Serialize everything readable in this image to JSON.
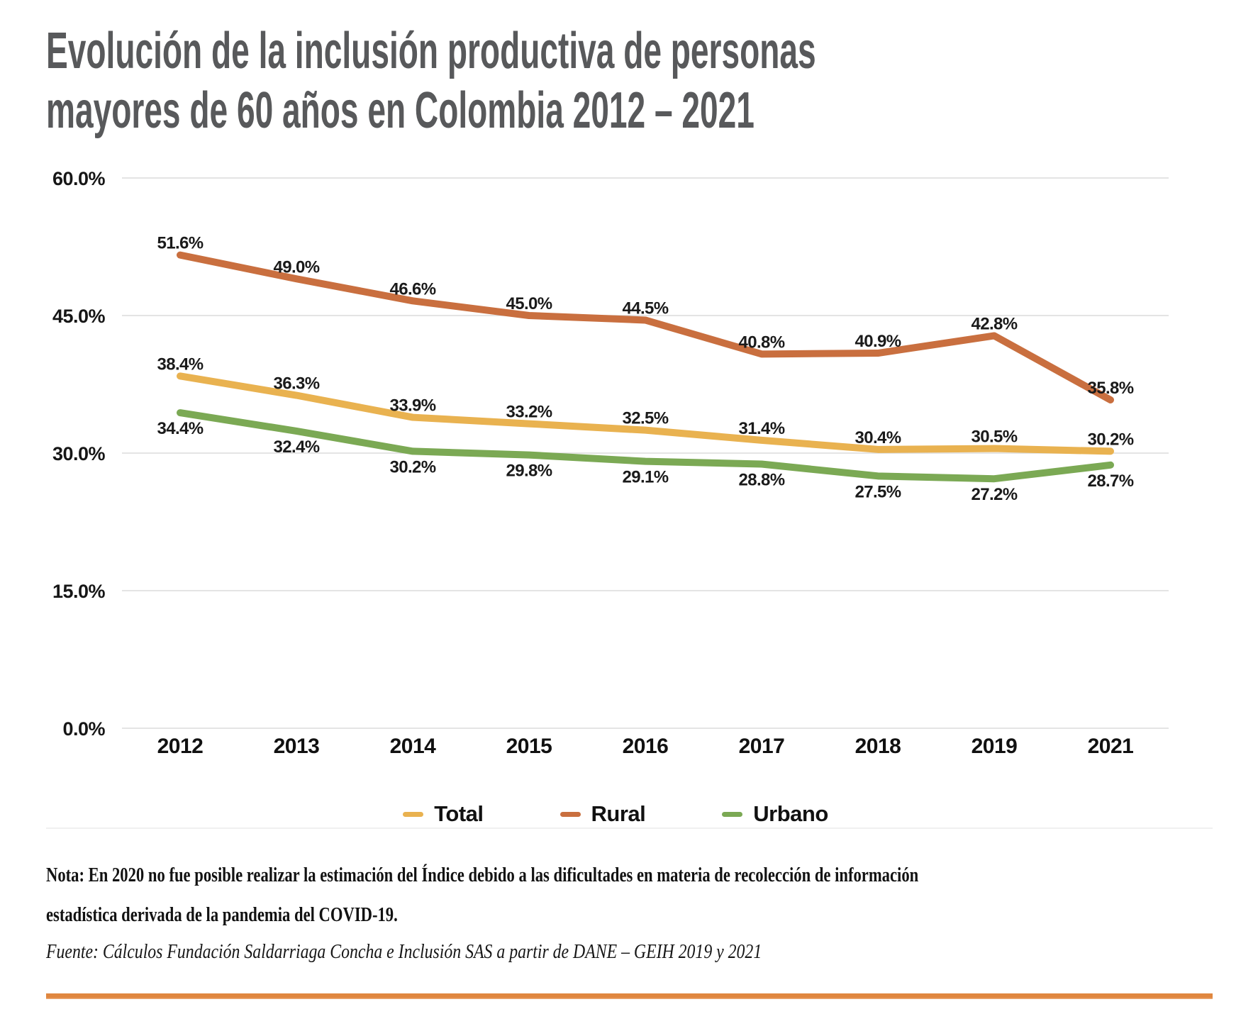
{
  "page": {
    "title_line1": "Evolución de la inclusión productiva de personas",
    "title_line2": "mayores de 60 años en Colombia 2012 – 2021",
    "nota_line1": "Nota: En 2020 no fue posible realizar la estimación del Índice debido a las dificultades en materia de recolección de información",
    "nota_line2": "estadística derivada de la pandemia del COVID-19.",
    "fuente": "Fuente: Cálculos Fundación Saldarriaga Concha e Inclusión SAS a partir de DANE – GEIH 2019 y 2021",
    "accent_rule_color": "#E0873F"
  },
  "chart_data": {
    "type": "line",
    "title": "Evolución de la inclusión productiva de personas mayores de 60 años en Colombia 2012 – 2021",
    "categories": [
      "2012",
      "2013",
      "2014",
      "2015",
      "2016",
      "2017",
      "2018",
      "2019",
      "2021"
    ],
    "series": [
      {
        "name": "Total",
        "color": "#E9B250",
        "label_position": "above",
        "values": [
          38.4,
          36.3,
          33.9,
          33.2,
          32.5,
          31.4,
          30.4,
          30.5,
          30.2
        ]
      },
      {
        "name": "Rural",
        "color": "#C96F3F",
        "label_position": "above",
        "values": [
          51.6,
          49.0,
          46.6,
          45.0,
          44.5,
          40.8,
          40.9,
          42.8,
          35.8
        ]
      },
      {
        "name": "Urbano",
        "color": "#7BA954",
        "label_position": "below",
        "values": [
          34.4,
          32.4,
          30.2,
          29.8,
          29.1,
          28.8,
          27.5,
          27.2,
          28.7
        ]
      }
    ],
    "xlabel": "",
    "ylabel": "",
    "ylim": [
      0,
      60
    ],
    "yticks": [
      {
        "value": 0,
        "label": "0.0%"
      },
      {
        "value": 15,
        "label": "15.0%"
      },
      {
        "value": 30,
        "label": "30.0%"
      },
      {
        "value": 45,
        "label": "45.0%"
      },
      {
        "value": 60,
        "label": "60.0%"
      }
    ],
    "grid": true,
    "gridline_color": "#DBDBDB",
    "label_color": "#1a1a1a",
    "data_label_format": "0.0%",
    "legend_position": "bottom",
    "legend": [
      "Total",
      "Rural",
      "Urbano"
    ]
  }
}
